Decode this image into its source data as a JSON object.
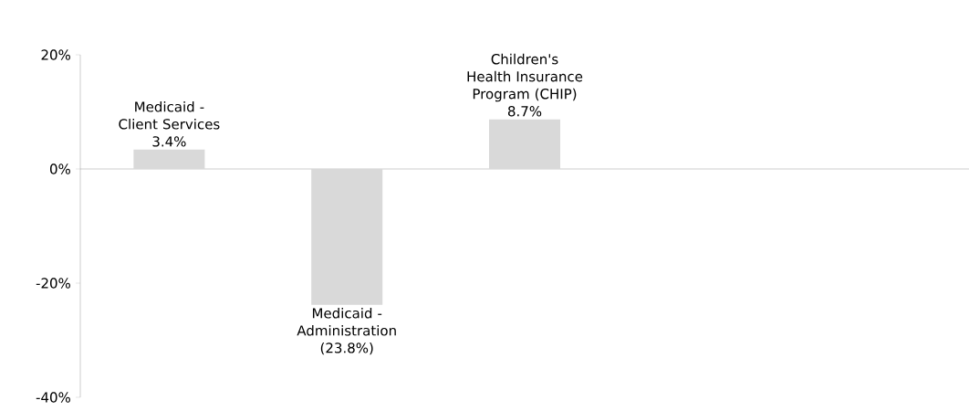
{
  "chart_data": {
    "type": "bar",
    "categories": [
      "Medicaid - Client Services",
      "Medicaid - Administration",
      "Children's Health Insurance Program (CHIP)",
      null,
      null
    ],
    "values": [
      3.4,
      -23.8,
      8.7,
      null,
      null
    ],
    "value_labels": [
      "3.4%",
      "(23.8%)",
      "8.7%",
      null,
      null
    ],
    "color": "#d9d9d9",
    "ylim": [
      -40,
      20
    ],
    "yticks": [
      {
        "value": -40,
        "label": "-40%"
      },
      {
        "value": -20,
        "label": "-20%"
      },
      {
        "value": 0,
        "label": "0%"
      },
      {
        "value": 20,
        "label": "20%"
      }
    ]
  }
}
